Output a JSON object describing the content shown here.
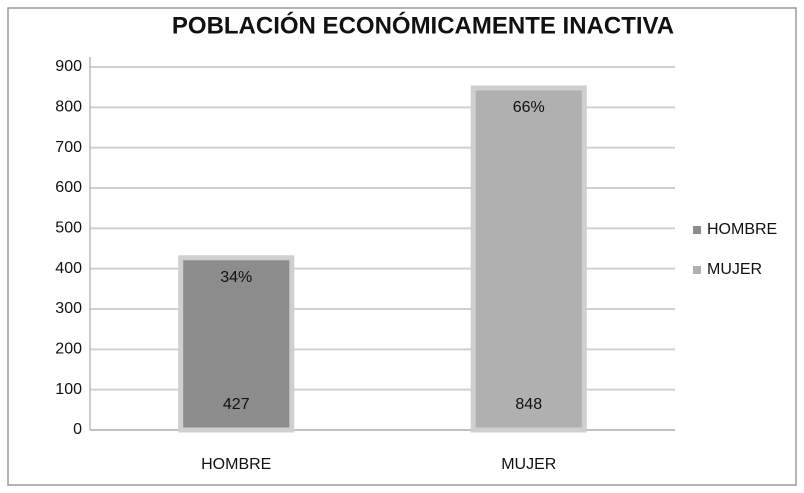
{
  "chart_data": {
    "type": "bar",
    "title": "POBLACIÓN ECONÓMICAMENTE INACTIVA",
    "categories": [
      "HOMBRE",
      "MUJER"
    ],
    "values": [
      427,
      848
    ],
    "shares": [
      34,
      66
    ],
    "share_labels": [
      "34%",
      "66%"
    ],
    "colors": [
      "#8c8c8c",
      "#b0b0b0"
    ],
    "legend": {
      "entries": [
        "HOMBRE",
        "MUJER"
      ],
      "position": "right"
    },
    "ylim": [
      0,
      900
    ],
    "yticks": [
      0,
      100,
      200,
      300,
      400,
      500,
      600,
      700,
      800,
      900
    ],
    "grid": true
  }
}
